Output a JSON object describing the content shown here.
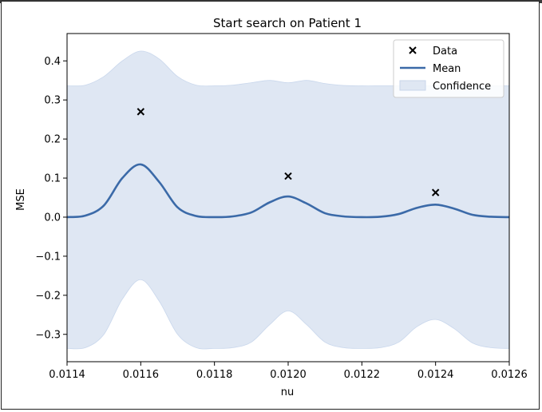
{
  "chart_data": {
    "type": "line",
    "title": "Start search on Patient 1",
    "xlabel": "nu",
    "ylabel": "MSE",
    "xlim": [
      0.0114,
      0.0126
    ],
    "ylim": [
      -0.37,
      0.47
    ],
    "xticks": [
      0.0114,
      0.0116,
      0.0118,
      0.012,
      0.0122,
      0.0124,
      0.0126
    ],
    "xtick_labels": [
      "0.0114",
      "0.0116",
      "0.0118",
      "0.0120",
      "0.0122",
      "0.0124",
      "0.0126"
    ],
    "yticks": [
      -0.3,
      -0.2,
      -0.1,
      0.0,
      0.1,
      0.2,
      0.3,
      0.4
    ],
    "ytick_labels": [
      "−0.3",
      "−0.2",
      "−0.1",
      "0.0",
      "0.1",
      "0.2",
      "0.3",
      "0.4"
    ],
    "grid": false,
    "legend": {
      "placement": "top-right",
      "entries": [
        "Data",
        "Mean",
        "Confidence"
      ]
    },
    "series": [
      {
        "name": "Data",
        "kind": "scatter",
        "marker": "x",
        "color": "#000000",
        "x": [
          0.0116,
          0.012,
          0.0124
        ],
        "y": [
          0.27,
          0.105,
          0.063
        ]
      },
      {
        "name": "Mean",
        "kind": "line",
        "color": "#3b6aa8",
        "x": [
          0.0114,
          0.01145,
          0.0115,
          0.01155,
          0.0116,
          0.01165,
          0.0117,
          0.01175,
          0.0118,
          0.01185,
          0.0119,
          0.01195,
          0.012,
          0.01205,
          0.0121,
          0.01215,
          0.0122,
          0.01225,
          0.0123,
          0.01235,
          0.0124,
          0.01245,
          0.0125,
          0.01255,
          0.0126
        ],
        "y": [
          0.0,
          0.004,
          0.03,
          0.1,
          0.135,
          0.09,
          0.025,
          0.003,
          0.0,
          0.002,
          0.012,
          0.038,
          0.053,
          0.035,
          0.01,
          0.002,
          0.0,
          0.001,
          0.008,
          0.024,
          0.032,
          0.022,
          0.006,
          0.001,
          0.0
        ]
      },
      {
        "name": "Confidence",
        "kind": "band",
        "color": "#dfe7f3",
        "x": [
          0.0114,
          0.01145,
          0.0115,
          0.01155,
          0.0116,
          0.01165,
          0.0117,
          0.01175,
          0.0118,
          0.01185,
          0.0119,
          0.01195,
          0.012,
          0.01205,
          0.0121,
          0.01215,
          0.0122,
          0.01225,
          0.0123,
          0.01235,
          0.0124,
          0.01245,
          0.0125,
          0.01255,
          0.0126
        ],
        "upper": [
          0.336,
          0.338,
          0.36,
          0.4,
          0.425,
          0.405,
          0.36,
          0.338,
          0.336,
          0.338,
          0.344,
          0.35,
          0.344,
          0.35,
          0.342,
          0.337,
          0.336,
          0.336,
          0.336,
          0.336,
          0.336,
          0.336,
          0.336,
          0.336,
          0.336
        ],
        "lower": [
          -0.336,
          -0.334,
          -0.3,
          -0.21,
          -0.16,
          -0.215,
          -0.3,
          -0.334,
          -0.336,
          -0.334,
          -0.32,
          -0.275,
          -0.24,
          -0.275,
          -0.32,
          -0.334,
          -0.336,
          -0.334,
          -0.32,
          -0.28,
          -0.262,
          -0.285,
          -0.322,
          -0.334,
          -0.336
        ]
      }
    ]
  }
}
